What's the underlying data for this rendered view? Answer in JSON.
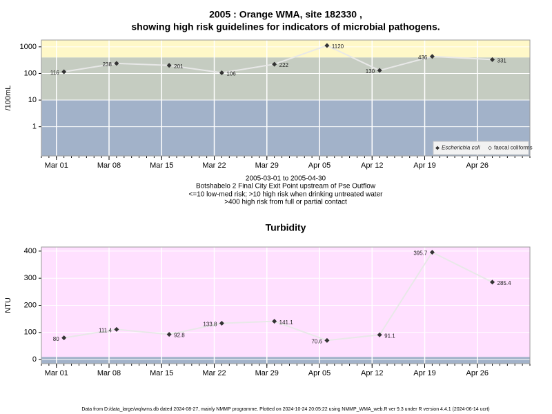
{
  "chart_data": [
    {
      "type": "line",
      "title": [
        "2005 : Orange WMA, site 182330 ,",
        "showing high risk guidelines for indicators of microbial pathogens."
      ],
      "subtitle": [
        "2005-03-01 to 2005-04-30",
        "Botshabelo 2 Final City Exit Point upstream of Pse Outflow",
        "<=10 low-med risk; >10 high risk when drinking untreated water",
        ">400 high risk from full or partial contact"
      ],
      "y_label": "/100mL",
      "log_scale": true,
      "grid": true,
      "legend": "bottom-right",
      "x": [
        "Mar 02",
        "Mar 09",
        "Mar 16",
        "Mar 23",
        "Mar 30",
        "Apr 06",
        "Apr 13",
        "Apr 20",
        "Apr 28"
      ],
      "xlim": [
        "Feb 27",
        "May 03"
      ],
      "xticks": [
        "Mar 01",
        "Mar 08",
        "Mar 15",
        "Mar 22",
        "Mar 29",
        "Apr 05",
        "Apr 12",
        "Apr 19",
        "Apr 26"
      ],
      "ylim": [
        0.08,
        1800
      ],
      "yticks": [
        1,
        10,
        100,
        1000
      ],
      "bands": [
        {
          "upper": 10,
          "color": "#a2b2c9"
        },
        {
          "upper": 400,
          "color": "#c5ccc1"
        },
        {
          "color": "#fff8c8"
        }
      ],
      "series": [
        {
          "name": "Escherichia coli",
          "color": "#333333",
          "values": [
            116,
            238,
            201,
            106,
            222,
            1120,
            130,
            436,
            331
          ]
        },
        {
          "name": "faecal coliforms",
          "color": "#ffffff",
          "values": [
            null,
            null,
            null,
            null,
            null,
            null,
            null,
            null,
            null
          ]
        }
      ]
    },
    {
      "type": "line",
      "title": "Turbidity",
      "y_label": "NTU",
      "grid": true,
      "x": [
        "Mar 02",
        "Mar 09",
        "Mar 16",
        "Mar 23",
        "Mar 30",
        "Apr 06",
        "Apr 13",
        "Apr 20",
        "Apr 28"
      ],
      "xlim": [
        "Feb 27",
        "May 03"
      ],
      "xticks": [
        "Mar 01",
        "Mar 08",
        "Mar 15",
        "Mar 22",
        "Mar 29",
        "Apr 05",
        "Apr 12",
        "Apr 19",
        "Apr 26"
      ],
      "ylim": [
        -15,
        415
      ],
      "yticks": [
        0,
        100,
        200,
        300,
        400
      ],
      "bands": [
        {
          "upper": 10,
          "color": "#a2b2c9"
        },
        {
          "color": "#ffe0ff"
        }
      ],
      "series": [
        {
          "name": "Turbidity",
          "color": "#333333",
          "values": [
            80,
            111.4,
            92.8,
            133.8,
            141.1,
            70.6,
            91.1,
            395.7,
            285.4
          ]
        }
      ]
    }
  ],
  "footer": "Data from D:/data_large/wq/wms.db dated 2024-08-27, mainly NMMP programme. Plotted on 2024-10-24 20:05:22 using NMMP_WMA_web.R ver 9.3 under R version 4.4.1 (2024-06-14 ucrt)"
}
